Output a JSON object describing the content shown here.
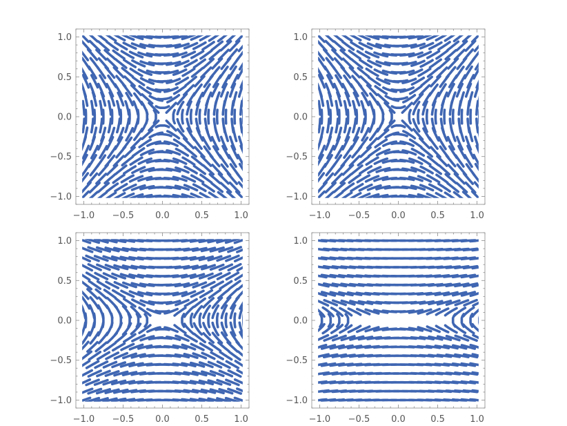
{
  "chart_data": [
    {
      "type": "stream-plot",
      "x_ticks": [
        "−1.0",
        "−0.5",
        "0.0",
        "0.5",
        "1.0"
      ],
      "y_ticks": [
        "−1.0",
        "−0.5",
        "0.0",
        "0.5",
        "1.0"
      ],
      "x_tick_values": [
        -1.0,
        -0.5,
        0.0,
        0.5,
        1.0
      ],
      "y_tick_values": [
        -1.0,
        -0.5,
        0.0,
        0.5,
        1.0
      ],
      "xlim": [
        -1.1,
        1.1
      ],
      "ylim": [
        -1.1,
        1.1
      ],
      "field": {
        "a": 1.0,
        "b": 1.0
      },
      "color": "#3f66b2"
    },
    {
      "type": "stream-plot",
      "x_ticks": [
        "−1.0",
        "−0.5",
        "0.0",
        "0.5",
        "1.0"
      ],
      "y_ticks": [
        "−1.0",
        "−0.5",
        "0.0",
        "0.5",
        "1.0"
      ],
      "x_tick_values": [
        -1.0,
        -0.5,
        0.0,
        0.5,
        1.0
      ],
      "y_tick_values": [
        -1.0,
        -0.5,
        0.0,
        0.5,
        1.0
      ],
      "xlim": [
        -1.1,
        1.1
      ],
      "ylim": [
        -1.1,
        1.1
      ],
      "field": {
        "a": 1.0,
        "b": 1.0
      },
      "color": "#3f66b2"
    },
    {
      "type": "stream-plot",
      "x_ticks": [
        "−1.0",
        "−0.5",
        "0.0",
        "0.5",
        "1.0"
      ],
      "y_ticks": [
        "−1.0",
        "−0.5",
        "0.0",
        "0.5",
        "1.0"
      ],
      "x_tick_values": [
        -1.0,
        -0.5,
        0.0,
        0.5,
        1.0
      ],
      "y_tick_values": [
        -1.0,
        -0.5,
        0.0,
        0.5,
        1.0
      ],
      "xlim": [
        -1.1,
        1.1
      ],
      "ylim": [
        -1.1,
        1.1
      ],
      "field": {
        "a": 1.0,
        "b": 0.35
      },
      "color": "#3f66b2"
    },
    {
      "type": "stream-plot",
      "x_ticks": [
        "−1.0",
        "−0.5",
        "0.0",
        "0.5",
        "1.0"
      ],
      "y_ticks": [
        "−1.0",
        "−0.5",
        "0.0",
        "0.5",
        "1.0"
      ],
      "x_tick_values": [
        -1.0,
        -0.5,
        0.0,
        0.5,
        1.0
      ],
      "y_tick_values": [
        -1.0,
        -0.5,
        0.0,
        0.5,
        1.0
      ],
      "xlim": [
        -1.1,
        1.1
      ],
      "ylim": [
        -1.1,
        1.1
      ],
      "field": {
        "a": 1.0,
        "b": 0.1
      },
      "color": "#3f66b2"
    }
  ]
}
